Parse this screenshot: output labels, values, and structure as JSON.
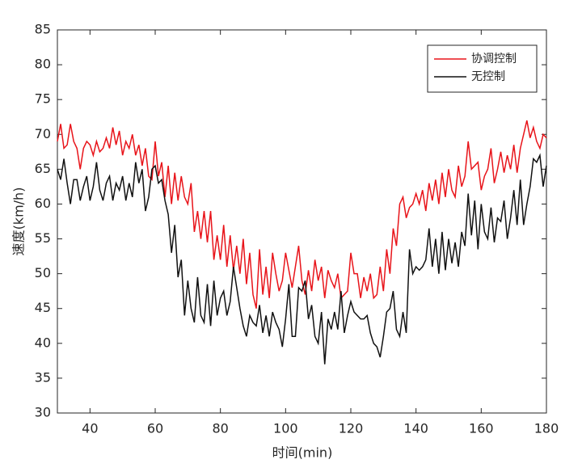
{
  "chart_data": {
    "type": "line",
    "x_label": "时间(min)",
    "y_label": "速度(km/h)",
    "x": [
      30,
      31,
      32,
      33,
      34,
      35,
      36,
      37,
      38,
      39,
      40,
      41,
      42,
      43,
      44,
      45,
      46,
      47,
      48,
      49,
      50,
      51,
      52,
      53,
      54,
      55,
      56,
      57,
      58,
      59,
      60,
      61,
      62,
      63,
      64,
      65,
      66,
      67,
      68,
      69,
      70,
      71,
      72,
      73,
      74,
      75,
      76,
      77,
      78,
      79,
      80,
      81,
      82,
      83,
      84,
      85,
      86,
      87,
      88,
      89,
      90,
      91,
      92,
      93,
      94,
      95,
      96,
      97,
      98,
      99,
      100,
      101,
      102,
      103,
      104,
      105,
      106,
      107,
      108,
      109,
      110,
      111,
      112,
      113,
      114,
      115,
      116,
      117,
      118,
      119,
      120,
      121,
      122,
      123,
      124,
      125,
      126,
      127,
      128,
      129,
      130,
      131,
      132,
      133,
      134,
      135,
      136,
      137,
      138,
      139,
      140,
      141,
      142,
      143,
      144,
      145,
      146,
      147,
      148,
      149,
      150,
      151,
      152,
      153,
      154,
      155,
      156,
      157,
      158,
      159,
      160,
      161,
      162,
      163,
      164,
      165,
      166,
      167,
      168,
      169,
      170,
      171,
      172,
      173,
      174,
      175,
      176,
      177,
      178,
      179,
      180
    ],
    "series": [
      {
        "name": "协调控制",
        "color": "#e8141a",
        "values": [
          69,
          71.5,
          68,
          68.5,
          71.5,
          69,
          68,
          65,
          68,
          69,
          68.5,
          67,
          69,
          67.5,
          68,
          69.5,
          68,
          71,
          68.5,
          70.5,
          67,
          69,
          68,
          70,
          67,
          68.5,
          65.5,
          68,
          64,
          63.5,
          69,
          64,
          66,
          61,
          65.5,
          60,
          64.5,
          60.5,
          64,
          61,
          60,
          63,
          56,
          59,
          55,
          59,
          54.5,
          59,
          52,
          55.5,
          52,
          57,
          51,
          55.5,
          50.5,
          54,
          50,
          55,
          48.5,
          53,
          47,
          45,
          53.5,
          47,
          51,
          46.5,
          53,
          50,
          47.5,
          49,
          53,
          50.5,
          48,
          51,
          54,
          49,
          47,
          50.5,
          47.5,
          52,
          49,
          51,
          46.5,
          50.5,
          49,
          48,
          50,
          46.5,
          47,
          47.5,
          53,
          50,
          50,
          46.5,
          49.5,
          47.5,
          50,
          46.5,
          47,
          51,
          47.5,
          53.5,
          50,
          56.5,
          54,
          60,
          61,
          58,
          59.5,
          60,
          61.5,
          60,
          62,
          59,
          63,
          60.5,
          63.5,
          60,
          64.5,
          61,
          65,
          62,
          61,
          65.5,
          62.5,
          64,
          69,
          65,
          65.5,
          66,
          62,
          64,
          65,
          68,
          63,
          65,
          67.5,
          64.5,
          67,
          65,
          68.5,
          64.5,
          68,
          70,
          72,
          69.5,
          71,
          69,
          68,
          70,
          69.5
        ]
      },
      {
        "name": "无控制",
        "color": "#111111",
        "values": [
          65,
          63.5,
          66.5,
          63,
          60,
          63.5,
          63.5,
          60.5,
          62.5,
          64,
          60.5,
          62.5,
          66,
          62,
          60.5,
          63,
          64,
          60.5,
          63,
          62,
          64,
          60.5,
          63,
          61,
          66,
          63,
          65,
          59,
          61,
          65,
          65.5,
          63,
          63.5,
          60.5,
          58.5,
          53,
          57,
          49.5,
          52,
          44,
          49,
          45,
          43,
          49.5,
          44,
          43,
          48.5,
          42.5,
          49,
          44,
          46.5,
          47.5,
          44,
          46,
          51,
          48,
          45,
          42.5,
          41,
          44,
          43,
          42.5,
          45.5,
          41.5,
          44,
          41,
          44.5,
          43,
          42,
          39.5,
          43.5,
          48.5,
          41,
          41,
          48,
          47.5,
          49,
          43.5,
          45.5,
          41,
          40,
          44.5,
          37,
          43.5,
          42,
          44.5,
          42,
          47.5,
          41.5,
          44,
          46,
          44.5,
          44,
          43.5,
          43.5,
          44,
          41.5,
          40,
          39.5,
          38,
          41,
          44.5,
          45,
          47.5,
          42,
          41,
          44.5,
          41.5,
          53.5,
          50,
          51,
          50.5,
          51,
          52,
          56.5,
          51,
          55,
          50,
          56,
          50.5,
          55,
          51.5,
          54.5,
          51,
          56,
          54,
          61.5,
          55.5,
          60.5,
          53.5,
          60,
          56,
          55,
          59.5,
          54.5,
          58,
          57.5,
          60.5,
          55,
          58,
          62,
          57,
          63.5,
          57,
          60,
          62.5,
          66.5,
          66,
          67,
          62.5,
          65.5
        ]
      }
    ],
    "xlim": [
      30,
      180
    ],
    "xticks": [
      40,
      60,
      80,
      100,
      120,
      140,
      160,
      180
    ],
    "ylim": [
      30,
      85
    ],
    "yticks": [
      30,
      35,
      40,
      45,
      50,
      55,
      60,
      65,
      70,
      75,
      80,
      85
    ],
    "legend": "upper right"
  }
}
